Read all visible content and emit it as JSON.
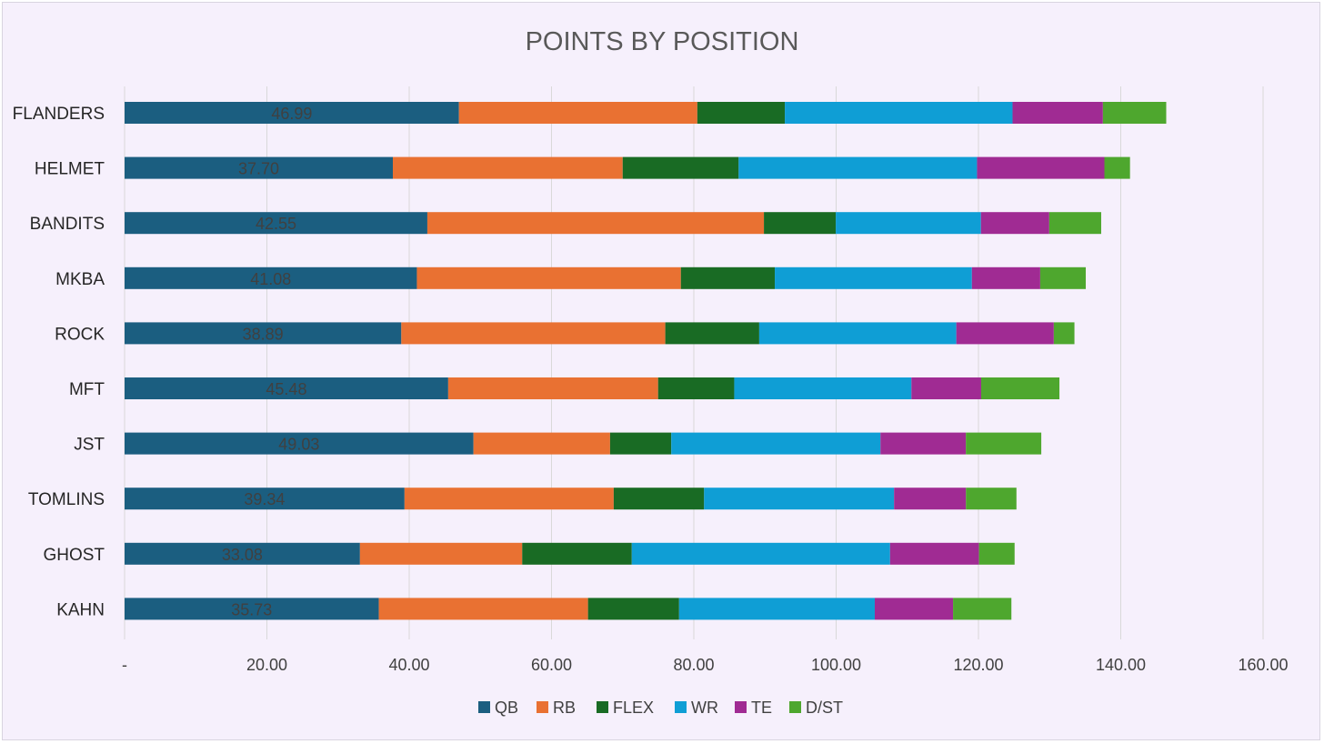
{
  "chart_data": {
    "type": "bar",
    "orientation": "horizontal",
    "stacked": true,
    "title": "POINTS BY POSITION",
    "xlabel": "",
    "ylabel": "",
    "xlim": [
      0,
      160
    ],
    "x_ticks": [
      0,
      20,
      40,
      60,
      80,
      100,
      120,
      140,
      160
    ],
    "x_tick_labels": [
      "-",
      "20.00",
      "40.00",
      "60.00",
      "80.00",
      "100.00",
      "120.00",
      "140.00",
      "160.00"
    ],
    "grid": "vertical",
    "legend_position": "bottom",
    "categories": [
      "FLANDERS",
      "HELMET",
      "BANDITS",
      "MKBA",
      "ROCK",
      "MFT",
      "JST",
      "TOMLINS",
      "GHOST",
      "KAHN"
    ],
    "series": [
      {
        "name": "QB",
        "color": "#1b5e80",
        "values": [
          46.99,
          37.7,
          42.55,
          41.08,
          38.89,
          45.48,
          49.03,
          39.34,
          33.08,
          35.73
        ],
        "data_labels": [
          "46.99",
          "37.70",
          "42.55",
          "41.08",
          "38.89",
          "45.48",
          "49.03",
          "39.34",
          "33.08",
          "35.73"
        ]
      },
      {
        "name": "RB",
        "color": "#e97132",
        "values": [
          33.5,
          32.3,
          47.3,
          37.1,
          37.1,
          29.5,
          19.2,
          29.4,
          22.8,
          29.4
        ]
      },
      {
        "name": "FLEX",
        "color": "#196b24",
        "values": [
          12.3,
          16.3,
          10.1,
          13.2,
          13.2,
          10.7,
          8.6,
          12.7,
          15.4,
          12.8
        ]
      },
      {
        "name": "WR",
        "color": "#0f9ed5",
        "values": [
          32.0,
          33.5,
          20.4,
          27.7,
          27.7,
          24.9,
          29.4,
          26.7,
          36.3,
          27.5
        ]
      },
      {
        "name": "TE",
        "color": "#a02b93",
        "values": [
          12.7,
          17.9,
          9.6,
          9.6,
          13.7,
          9.8,
          12.0,
          10.1,
          12.5,
          11.0
        ]
      },
      {
        "name": "D/ST",
        "color": "#4ea72e",
        "values": [
          8.9,
          3.6,
          7.3,
          6.4,
          2.9,
          11.0,
          10.6,
          7.1,
          5.0,
          8.2
        ]
      }
    ]
  }
}
